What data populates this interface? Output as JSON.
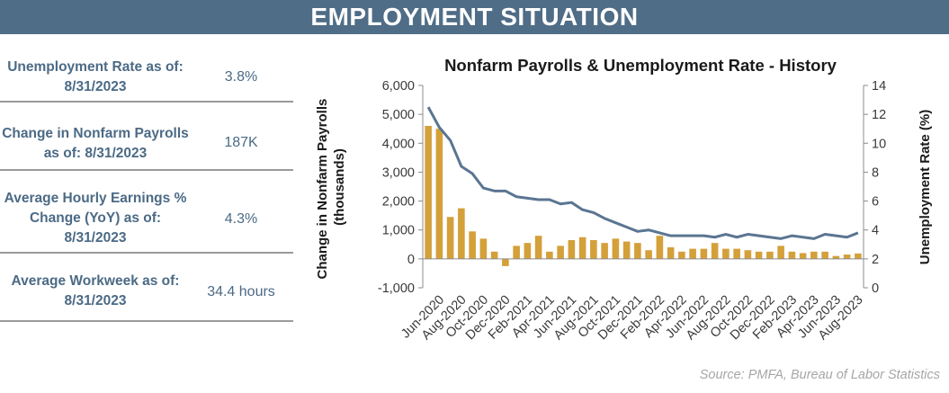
{
  "header": {
    "title": "EMPLOYMENT SITUATION"
  },
  "stats": [
    {
      "label": "Unemployment Rate as of: 8/31/2023",
      "value": "3.8%"
    },
    {
      "label": "Change in Nonfarm Payrolls as of: 8/31/2023",
      "value": "187K"
    },
    {
      "label": "Average Hourly Earnings % Change (YoY) as of: 8/31/2023",
      "value": "4.3%"
    },
    {
      "label": "Average Workweek as of: 8/31/2023",
      "value": "34.4 hours"
    }
  ],
  "chart_data": {
    "type": "bar+line",
    "title": "Nonfarm Payrolls & Unemployment Rate - History",
    "ylabel_left": "Change in Nonfarm Payrolls (thousands)",
    "ylabel_right": "Unemployment Rate (%)",
    "ylim_left": [
      -1000,
      6000
    ],
    "ylim_right": [
      0,
      14
    ],
    "yticks_left": [
      "-1,000",
      "0",
      "1,000",
      "2,000",
      "3,000",
      "4,000",
      "5,000",
      "6,000"
    ],
    "yticks_right": [
      "0",
      "2",
      "4",
      "6",
      "8",
      "10",
      "12",
      "14"
    ],
    "xticks": [
      "Jun-2020",
      "Aug-2020",
      "Oct-2020",
      "Dec-2020",
      "Feb-2021",
      "Apr-2021",
      "Jun-2021",
      "Aug-2021",
      "Oct-2021",
      "Dec-2021",
      "Feb-2022",
      "Apr-2022",
      "Jun-2022",
      "Aug-2022",
      "Oct-2022",
      "Dec-2022",
      "Feb-2023",
      "Apr-2023",
      "Jun-2023",
      "Aug-2023"
    ],
    "categories": [
      "May-2020",
      "Jun-2020",
      "Jul-2020",
      "Aug-2020",
      "Sep-2020",
      "Oct-2020",
      "Nov-2020",
      "Dec-2020",
      "Jan-2021",
      "Feb-2021",
      "Mar-2021",
      "Apr-2021",
      "May-2021",
      "Jun-2021",
      "Jul-2021",
      "Aug-2021",
      "Sep-2021",
      "Oct-2021",
      "Nov-2021",
      "Dec-2021",
      "Jan-2022",
      "Feb-2022",
      "Mar-2022",
      "Apr-2022",
      "May-2022",
      "Jun-2022",
      "Jul-2022",
      "Aug-2022",
      "Sep-2022",
      "Oct-2022",
      "Nov-2022",
      "Dec-2022",
      "Jan-2023",
      "Feb-2023",
      "Mar-2023",
      "Apr-2023",
      "May-2023",
      "Jun-2023",
      "Jul-2023",
      "Aug-2023"
    ],
    "series": [
      {
        "type": "bar",
        "axis": "left",
        "color": "#d4a03a",
        "values": [
          4600,
          4500,
          1450,
          1750,
          950,
          700,
          250,
          -250,
          450,
          550,
          800,
          250,
          450,
          650,
          750,
          650,
          550,
          700,
          600,
          550,
          300,
          800,
          400,
          250,
          350,
          350,
          550,
          350,
          350,
          300,
          250,
          250,
          450,
          250,
          200,
          250,
          250,
          100,
          150,
          187
        ]
      },
      {
        "type": "line",
        "axis": "right",
        "color": "#5a7591",
        "values": [
          12.5,
          11.1,
          10.2,
          8.4,
          7.9,
          6.9,
          6.7,
          6.7,
          6.3,
          6.2,
          6.1,
          6.1,
          5.8,
          5.9,
          5.4,
          5.2,
          4.8,
          4.5,
          4.2,
          3.9,
          4.0,
          3.8,
          3.6,
          3.6,
          3.6,
          3.6,
          3.5,
          3.7,
          3.5,
          3.7,
          3.6,
          3.5,
          3.4,
          3.6,
          3.5,
          3.4,
          3.7,
          3.6,
          3.5,
          3.8
        ]
      }
    ]
  },
  "source": "Source: PMFA, Bureau of Labor Statistics"
}
